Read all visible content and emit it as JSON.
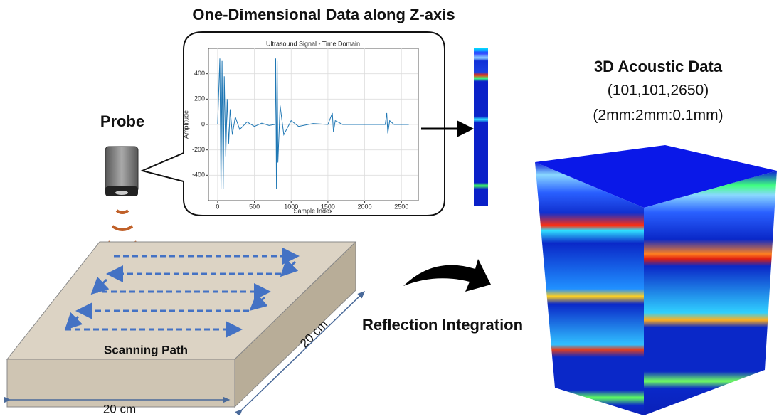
{
  "header": {
    "title": "One-Dimensional Data along Z-axis"
  },
  "probe": {
    "label": "Probe"
  },
  "chart_data": {
    "type": "line",
    "title": "Ultrasound Signal - Time Domain",
    "x_label": "Sample Index",
    "y_label": "Amplitude",
    "x": [
      0,
      30,
      45,
      60,
      75,
      90,
      110,
      130,
      150,
      170,
      200,
      240,
      300,
      400,
      500,
      600,
      700,
      780,
      790,
      800,
      810,
      820,
      850,
      900,
      1000,
      1100,
      1300,
      1500,
      1560,
      1575,
      1600,
      1700,
      2000,
      2280,
      2300,
      2315,
      2340,
      2400,
      2600
    ],
    "values": [
      0,
      520,
      -510,
      500,
      -510,
      380,
      -250,
      200,
      -150,
      120,
      -80,
      60,
      -40,
      20,
      -15,
      10,
      -8,
      0,
      520,
      -510,
      500,
      -300,
      150,
      -80,
      30,
      -15,
      8,
      0,
      90,
      -60,
      30,
      0,
      0,
      0,
      90,
      -70,
      30,
      0,
      0
    ],
    "color": "#1f77b4",
    "xlim": [
      -125,
      2730
    ],
    "ylim": [
      -600,
      600
    ],
    "xticks": [
      0,
      500,
      1000,
      1500,
      2000,
      2500
    ],
    "yticks": [
      -400,
      -200,
      0,
      200,
      400
    ],
    "grid": true
  },
  "volume": {
    "title": "3D Acoustic Data",
    "shape": "(101,101,2650)",
    "spacing": "(2mm:2mm:0.1mm)"
  },
  "scan": {
    "path_label": "Scanning Path",
    "width_label": "20 cm",
    "depth_label": "20 cm"
  },
  "process": {
    "label": "Reflection Integration"
  }
}
